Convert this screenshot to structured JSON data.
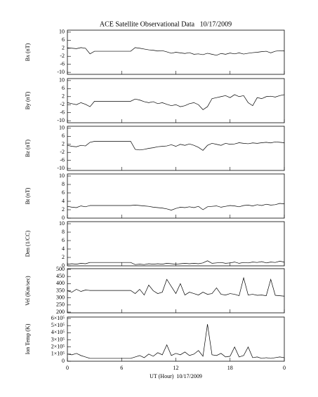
{
  "chart_data": [
    {
      "type": "line",
      "title": "ACE Satellite Observational Data   10/17/2009",
      "ylabel": "Bx (nT)",
      "color": "#000000",
      "x": [
        0,
        0.5,
        1,
        1.5,
        2,
        2.5,
        3,
        3.5,
        4,
        4.5,
        5,
        5.5,
        6,
        6.5,
        7,
        7.5,
        8,
        8.5,
        9,
        9.5,
        10,
        10.5,
        11,
        11.5,
        12,
        12.5,
        13,
        13.5,
        14,
        14.5,
        15,
        15.5,
        16,
        16.5,
        17,
        17.5,
        18,
        18.5,
        19,
        19.5,
        20,
        20.5,
        21,
        21.5,
        22,
        22.5,
        23,
        23.5,
        24
      ],
      "values": [
        2.2,
        2.0,
        1.8,
        2.3,
        2.0,
        -0.8,
        0.5,
        0.5,
        0.5,
        0.5,
        0.5,
        0.5,
        0.5,
        0.5,
        0.5,
        2.3,
        2.0,
        1.6,
        1.2,
        1.0,
        0.6,
        0.8,
        0.2,
        -0.5,
        0.0,
        -0.3,
        -0.6,
        -0.2,
        -1.0,
        -0.8,
        -1.2,
        -0.5,
        -1.0,
        -1.5,
        -0.6,
        -1.0,
        -0.4,
        -0.8,
        -0.3,
        -0.9,
        -0.5,
        -0.2,
        0.0,
        0.3,
        0.5,
        -0.3,
        0.5,
        0.8,
        0.6
      ],
      "xlim": [
        0,
        24
      ],
      "ylim": [
        -11,
        11
      ],
      "yticks": [
        10,
        6,
        2,
        -2,
        -6,
        -10
      ]
    },
    {
      "type": "line",
      "ylabel": "By (nT)",
      "color": "#000000",
      "x": [
        0,
        0.5,
        1,
        1.5,
        2,
        2.5,
        3,
        3.5,
        4,
        4.5,
        5,
        5.5,
        6,
        6.5,
        7,
        7.5,
        8,
        8.5,
        9,
        9.5,
        10,
        10.5,
        11,
        11.5,
        12,
        12.5,
        13,
        13.5,
        14,
        14.5,
        15,
        15.5,
        16,
        16.5,
        17,
        17.5,
        18,
        18.5,
        19,
        19.5,
        20,
        20.5,
        21,
        21.5,
        22,
        22.5,
        23,
        23.5,
        24
      ],
      "values": [
        -1.0,
        -1.5,
        -2.0,
        -1.0,
        -1.8,
        -3.0,
        -0.3,
        -0.3,
        -0.3,
        -0.3,
        -0.3,
        -0.3,
        -0.3,
        -0.3,
        -0.3,
        0.8,
        0.3,
        -0.5,
        -1.0,
        -0.5,
        -1.5,
        -1.0,
        -1.8,
        -2.5,
        -2.0,
        -3.0,
        -2.5,
        -1.5,
        -1.0,
        -2.0,
        -4.5,
        -3.0,
        1.0,
        1.5,
        2.0,
        2.5,
        1.5,
        3.0,
        2.0,
        2.5,
        -1.0,
        -2.5,
        1.5,
        1.0,
        2.0,
        2.2,
        1.8,
        2.5,
        3.0
      ],
      "xlim": [
        0,
        24
      ],
      "ylim": [
        -11,
        11
      ],
      "yticks": [
        10,
        6,
        2,
        -2,
        -6,
        -10
      ]
    },
    {
      "type": "line",
      "ylabel": "Bz (nT)",
      "color": "#000000",
      "x": [
        0,
        0.5,
        1,
        1.5,
        2,
        2.5,
        3,
        3.5,
        4,
        4.5,
        5,
        5.5,
        6,
        6.5,
        7,
        7.5,
        8,
        8.5,
        9,
        9.5,
        10,
        10.5,
        11,
        11.5,
        12,
        12.5,
        13,
        13.5,
        14,
        14.5,
        15,
        15.5,
        16,
        16.5,
        17,
        17.5,
        18,
        18.5,
        19,
        19.5,
        20,
        20.5,
        21,
        21.5,
        22,
        22.5,
        23,
        23.5,
        24
      ],
      "values": [
        1.5,
        1.0,
        0.8,
        1.5,
        1.2,
        3.0,
        3.5,
        3.5,
        3.5,
        3.5,
        3.5,
        3.5,
        3.5,
        3.5,
        3.5,
        -0.5,
        -0.8,
        -0.5,
        0.0,
        0.3,
        0.8,
        1.0,
        1.2,
        1.8,
        1.0,
        2.0,
        1.5,
        2.2,
        1.5,
        0.5,
        -1.0,
        1.5,
        2.5,
        2.0,
        1.5,
        2.5,
        2.0,
        2.2,
        2.8,
        2.5,
        2.3,
        2.7,
        2.5,
        2.8,
        3.0,
        2.7,
        3.2,
        3.0,
        2.8
      ],
      "xlim": [
        0,
        24
      ],
      "ylim": [
        -11,
        11
      ],
      "yticks": [
        10,
        6,
        2,
        -2,
        -6,
        -10
      ]
    },
    {
      "type": "line",
      "ylabel": "Bt (nT)",
      "color": "#000000",
      "x": [
        0,
        0.5,
        1,
        1.5,
        2,
        2.5,
        3,
        3.5,
        4,
        4.5,
        5,
        5.5,
        6,
        6.5,
        7,
        7.5,
        8,
        8.5,
        9,
        9.5,
        10,
        10.5,
        11,
        11.5,
        12,
        12.5,
        13,
        13.5,
        14,
        14.5,
        15,
        15.5,
        16,
        16.5,
        17,
        17.5,
        18,
        18.5,
        19,
        19.5,
        20,
        20.5,
        21,
        21.5,
        22,
        22.5,
        23,
        23.5,
        24
      ],
      "values": [
        2.8,
        2.6,
        2.5,
        2.9,
        2.7,
        3.0,
        3.0,
        3.0,
        3.0,
        3.0,
        3.0,
        3.0,
        3.0,
        3.0,
        3.0,
        3.1,
        3.0,
        2.9,
        2.8,
        2.6,
        2.5,
        2.4,
        2.2,
        1.9,
        2.3,
        2.6,
        2.5,
        2.7,
        2.5,
        2.8,
        2.0,
        2.7,
        2.8,
        2.9,
        2.6,
        2.8,
        3.0,
        2.9,
        2.7,
        3.0,
        3.1,
        2.9,
        3.2,
        3.0,
        3.3,
        3.1,
        3.2,
        3.5,
        3.4
      ],
      "xlim": [
        0,
        24
      ],
      "ylim": [
        0,
        10.5
      ],
      "yticks": [
        0,
        2,
        4,
        6,
        8,
        10
      ]
    },
    {
      "type": "line",
      "ylabel": "Den (1/CC)",
      "color": "#000000",
      "x": [
        0,
        0.5,
        1,
        1.5,
        2,
        2.5,
        3,
        3.5,
        4,
        4.5,
        5,
        5.5,
        6,
        6.5,
        7,
        7.5,
        8,
        8.5,
        9,
        9.5,
        10,
        10.5,
        11,
        11.5,
        12,
        12.5,
        13,
        13.5,
        14,
        14.5,
        15,
        15.5,
        16,
        16.5,
        17,
        17.5,
        18,
        18.5,
        19,
        19.5,
        20,
        20.5,
        21,
        21.5,
        22,
        22.5,
        23,
        23.5,
        24
      ],
      "values": [
        0.4,
        0.5,
        0.4,
        0.6,
        0.5,
        0.8,
        0.8,
        0.8,
        0.8,
        0.8,
        0.8,
        0.8,
        0.8,
        0.8,
        0.8,
        0.3,
        0.4,
        0.3,
        0.5,
        0.4,
        0.5,
        0.4,
        0.6,
        0.5,
        0.4,
        0.5,
        0.6,
        0.5,
        0.6,
        0.5,
        0.7,
        1.2,
        0.6,
        0.7,
        0.8,
        0.6,
        0.7,
        0.9,
        0.6,
        0.8,
        0.7,
        0.9,
        0.8,
        1.0,
        0.7,
        0.9,
        0.8,
        1.1,
        0.9
      ],
      "xlim": [
        0,
        24
      ],
      "ylim": [
        0,
        10.5
      ],
      "yticks": [
        0,
        2,
        4,
        6,
        8,
        10
      ]
    },
    {
      "type": "line",
      "ylabel": "Vel (Km/sec)",
      "color": "#000000",
      "x": [
        0,
        0.5,
        1,
        1.5,
        2,
        2.5,
        3,
        3.5,
        4,
        4.5,
        5,
        5.5,
        6,
        6.5,
        7,
        7.5,
        8,
        8.5,
        9,
        9.5,
        10,
        10.5,
        11,
        11.5,
        12,
        12.5,
        13,
        13.5,
        14,
        14.5,
        15,
        15.5,
        16,
        16.5,
        17,
        17.5,
        18,
        18.5,
        19,
        19.5,
        20,
        20.5,
        21,
        21.5,
        22,
        22.5,
        23,
        23.5,
        24
      ],
      "values": [
        350,
        340,
        360,
        345,
        355,
        352,
        352,
        352,
        352,
        352,
        352,
        352,
        352,
        352,
        352,
        330,
        360,
        320,
        390,
        350,
        330,
        340,
        430,
        380,
        330,
        400,
        320,
        340,
        330,
        320,
        340,
        325,
        330,
        370,
        325,
        320,
        330,
        325,
        315,
        440,
        320,
        325,
        318,
        320,
        315,
        430,
        318,
        315,
        312
      ],
      "xlim": [
        0,
        24
      ],
      "ylim": [
        195,
        505
      ],
      "yticks": [
        500,
        450,
        400,
        350,
        300,
        250,
        200
      ]
    },
    {
      "type": "line",
      "ylabel": "Ion Temp (K)",
      "color": "#000000",
      "xlabel": "UT (Hour)  10/17/2009",
      "x": [
        0,
        0.5,
        1,
        1.5,
        2,
        2.5,
        3,
        3.5,
        4,
        4.5,
        5,
        5.5,
        6,
        6.5,
        7,
        7.5,
        8,
        8.5,
        9,
        9.5,
        10,
        10.5,
        11,
        11.5,
        12,
        12.5,
        13,
        13.5,
        14,
        14.5,
        15,
        15.5,
        16,
        16.5,
        17,
        17.5,
        18,
        18.5,
        19,
        19.5,
        20,
        20.5,
        21,
        21.5,
        22,
        22.5,
        23,
        23.5,
        24
      ],
      "values": [
        100000,
        90000,
        110000,
        80000,
        60000,
        40000,
        40000,
        40000,
        40000,
        40000,
        40000,
        40000,
        40000,
        40000,
        40000,
        60000,
        80000,
        50000,
        100000,
        70000,
        120000,
        90000,
        230000,
        80000,
        110000,
        90000,
        130000,
        80000,
        100000,
        150000,
        70000,
        520000,
        90000,
        80000,
        110000,
        60000,
        70000,
        200000,
        60000,
        80000,
        200000,
        50000,
        60000,
        40000,
        50000,
        40000,
        50000,
        60000,
        50000
      ],
      "xlim": [
        0,
        24
      ],
      "ylim": [
        0,
        620000
      ],
      "yticks": [
        {
          "value": 600000,
          "label": "6×10⁵"
        },
        {
          "value": 500000,
          "label": "5×10⁵"
        },
        {
          "value": 400000,
          "label": "4×10⁵"
        },
        {
          "value": 300000,
          "label": "3×10⁵"
        },
        {
          "value": 200000,
          "label": "2×10⁵"
        },
        {
          "value": 100000,
          "label": "1×10⁵"
        },
        0
      ],
      "xticks": [
        0,
        6,
        12,
        18,
        {
          "value": 24,
          "label": "0"
        }
      ]
    }
  ]
}
